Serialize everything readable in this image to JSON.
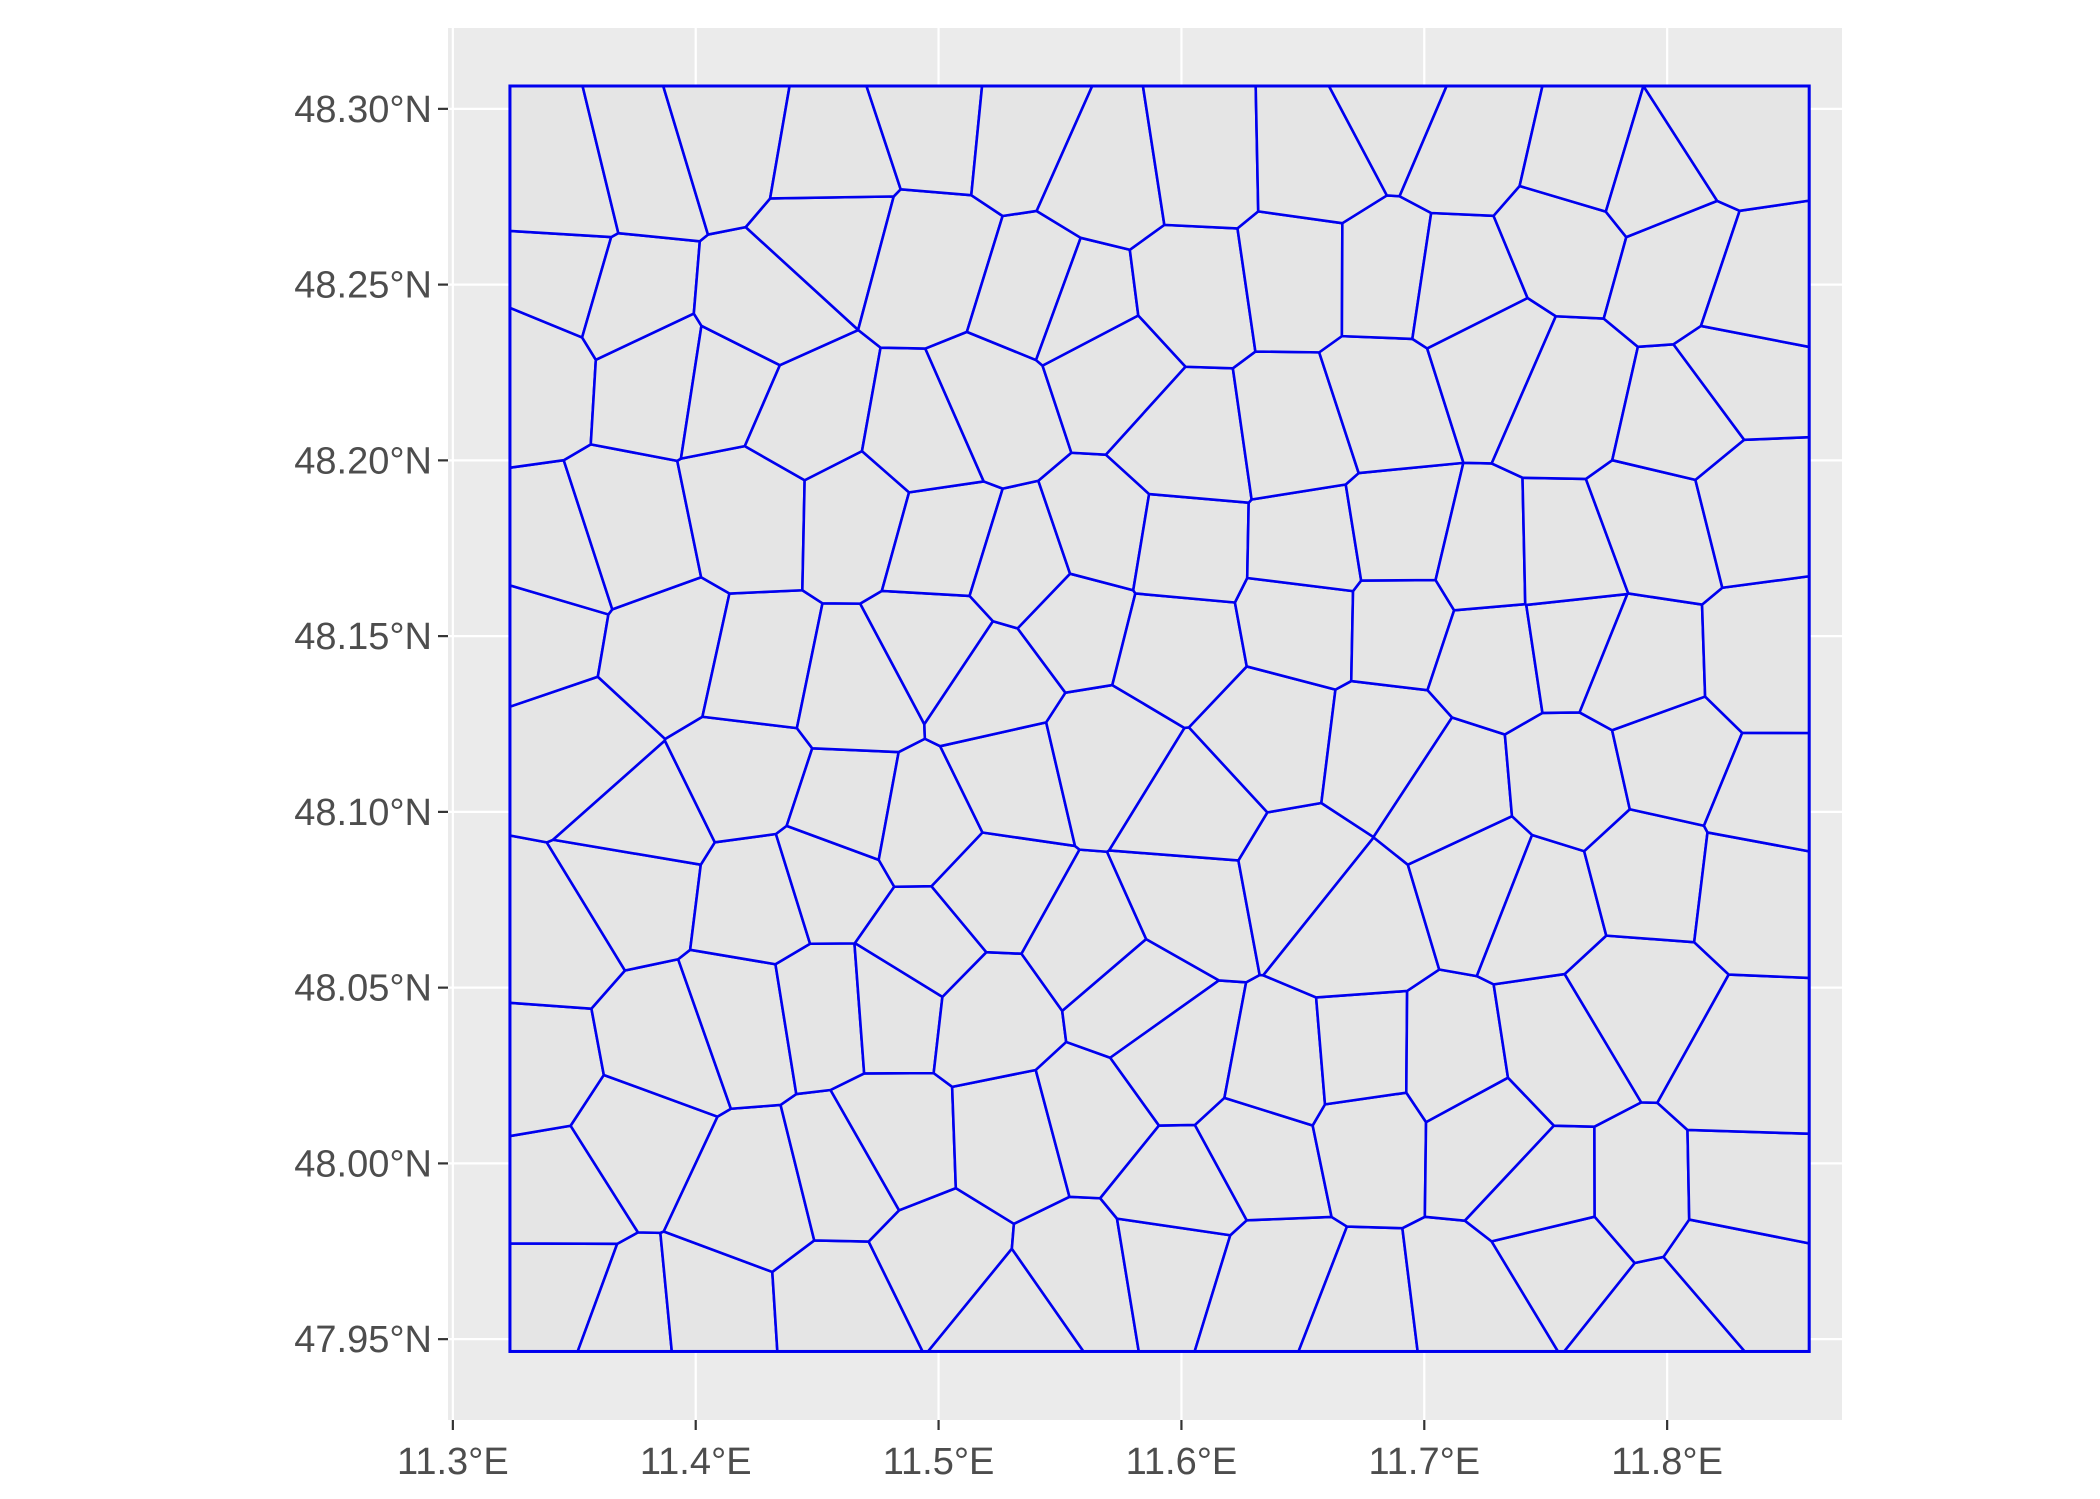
{
  "chart_data": {
    "type": "map",
    "title": "",
    "xlabel": "",
    "ylabel": "",
    "x_ticks": [
      {
        "value": 11.3,
        "label": "11.3°E"
      },
      {
        "value": 11.4,
        "label": "11.4°E"
      },
      {
        "value": 11.5,
        "label": "11.5°E"
      },
      {
        "value": 11.6,
        "label": "11.6°E"
      },
      {
        "value": 11.7,
        "label": "11.7°E"
      },
      {
        "value": 11.8,
        "label": "11.8°E"
      }
    ],
    "y_ticks": [
      {
        "value": 47.95,
        "label": "47.95°N"
      },
      {
        "value": 48.0,
        "label": "48.00°N"
      },
      {
        "value": 48.05,
        "label": "48.05°N"
      },
      {
        "value": 48.1,
        "label": "48.10°N"
      },
      {
        "value": 48.15,
        "label": "48.15°N"
      },
      {
        "value": 48.2,
        "label": "48.20°N"
      },
      {
        "value": 48.25,
        "label": "48.25°N"
      },
      {
        "value": 48.3,
        "label": "48.30°N"
      }
    ],
    "xlim": [
      11.298,
      11.872
    ],
    "ylim": [
      47.927,
      48.323
    ],
    "bbox": {
      "lon_min": 11.3235,
      "lon_max": 11.8585,
      "lat_min": 47.9465,
      "lat_max": 48.3065
    },
    "graticule": true,
    "colors": {
      "panel_background": "#ebebeb",
      "grid": "#ffffff",
      "polygon_fill": "#e5e5e5",
      "polygon_stroke": "#0000ee"
    },
    "voronoi": {
      "cell_size_deg": 0.036,
      "jitter": 0.34,
      "seed": 20240517
    }
  }
}
